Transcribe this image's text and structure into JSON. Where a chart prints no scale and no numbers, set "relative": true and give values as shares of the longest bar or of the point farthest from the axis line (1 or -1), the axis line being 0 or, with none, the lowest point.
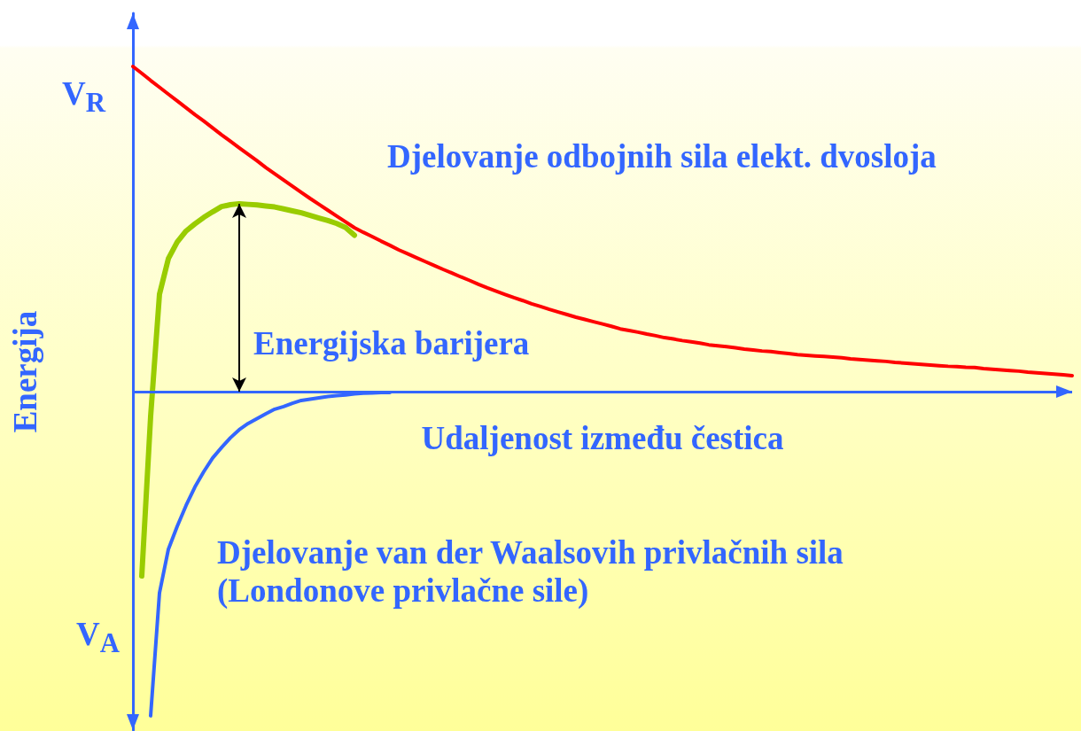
{
  "chart_data": {
    "type": "line",
    "relative": true,
    "xlabel": "Udaljenost između čestica",
    "ylabel": "Energija",
    "line_style": "solid",
    "categories": [
      null,
      null,
      null,
      null,
      null,
      null,
      null,
      null,
      null,
      null,
      null,
      null,
      null,
      null,
      null,
      null,
      null,
      null,
      null,
      null,
      null,
      null,
      null,
      null,
      null,
      null,
      null,
      null,
      null,
      null,
      null,
      null,
      null,
      null,
      null,
      null,
      null,
      null,
      null,
      null,
      null,
      null,
      null,
      null,
      null,
      null,
      null,
      null,
      null,
      null,
      null,
      null,
      null,
      null,
      null,
      null,
      null,
      null,
      null,
      null,
      null,
      null,
      null,
      null,
      null,
      null,
      null,
      null,
      null,
      null,
      null,
      null,
      null,
      null,
      null,
      null,
      null,
      null,
      null,
      null,
      null,
      null,
      null,
      null,
      null,
      null,
      null,
      null,
      null,
      null,
      null,
      null,
      null,
      null,
      null,
      null,
      null,
      null,
      null,
      null,
      null,
      null,
      null,
      null,
      null,
      null,
      null
    ],
    "series": [
      {
        "color": "#ff0000",
        "values": [
          1,
          0.979,
          0.957,
          0.936,
          0.915,
          0.894,
          0.873,
          0.852,
          0.832,
          0.811,
          0.79,
          0.77,
          0.75,
          0.73,
          0.71,
          0.689,
          0.67,
          0.651,
          0.632,
          0.613,
          0.594,
          0.576,
          0.558,
          0.54,
          0.522,
          0.504,
          0.49,
          0.477,
          0.463,
          0.45,
          0.436,
          0.424,
          0.412,
          0.4,
          0.388,
          0.376,
          0.365,
          0.353,
          0.342,
          0.33,
          0.319,
          0.309,
          0.299,
          0.289,
          0.28,
          0.27,
          0.262,
          0.253,
          0.245,
          0.237,
          0.229,
          0.222,
          0.215,
          0.208,
          0.201,
          0.193,
          0.188,
          0.183,
          0.177,
          0.172,
          0.166,
          0.162,
          0.157,
          0.153,
          0.149,
          0.144,
          0.141,
          0.138,
          0.135,
          0.131,
          0.128,
          0.125,
          0.123,
          0.12,
          0.117,
          0.114,
          0.112,
          0.11,
          0.108,
          0.106,
          0.104,
          0.101,
          0.099,
          0.097,
          0.095,
          0.093,
          0.09,
          0.088,
          0.086,
          0.084,
          0.082,
          0.08,
          0.078,
          0.077,
          0.075,
          0.074,
          0.071,
          0.069,
          0.067,
          0.065,
          0.063,
          0.06,
          0.058,
          0.056,
          0.054,
          0.052,
          0.049
        ]
      },
      {
        "color": "#3366ff",
        "values": [
          null,
          null,
          -0.997,
          -0.619,
          -0.485,
          -0.414,
          -0.35,
          -0.293,
          -0.246,
          -0.204,
          -0.172,
          -0.142,
          -0.117,
          -0.098,
          -0.083,
          -0.068,
          -0.054,
          -0.046,
          -0.036,
          -0.027,
          -0.023,
          -0.019,
          -0.015,
          -0.012,
          -0.01,
          -0.007,
          -0.005,
          -0.004,
          -0.003,
          -0.003,
          null,
          null,
          null,
          null,
          null,
          null,
          null,
          null,
          null,
          null,
          null,
          null,
          null,
          null,
          null,
          null,
          null,
          null,
          null,
          null,
          null,
          null,
          null,
          null,
          null,
          null,
          null,
          null,
          null,
          null,
          null,
          null,
          null,
          null,
          null,
          null,
          null,
          null,
          null,
          null,
          null,
          null,
          null,
          null,
          null,
          null,
          null,
          null,
          null,
          null,
          null,
          null,
          null,
          null,
          null,
          null,
          null,
          null,
          null,
          null,
          null,
          null,
          null,
          null,
          null,
          null,
          null,
          null,
          null,
          null,
          null,
          null,
          null,
          null,
          null,
          null,
          null
        ]
      },
      {
        "color": "#99cc00",
        "values": [
          null,
          -0.567,
          -0.076,
          0.3,
          0.409,
          0.46,
          0.494,
          0.516,
          0.536,
          0.553,
          0.569,
          0.575,
          0.578,
          0.576,
          0.574,
          0.571,
          0.568,
          0.562,
          0.556,
          0.55,
          0.542,
          0.534,
          0.526,
          0.517,
          0.505,
          0.481,
          null,
          null,
          null,
          null,
          null,
          null,
          null,
          null,
          null,
          null,
          null,
          null,
          null,
          null,
          null,
          null,
          null,
          null,
          null,
          null,
          null,
          null,
          null,
          null,
          null,
          null,
          null,
          null,
          null,
          null,
          null,
          null,
          null,
          null,
          null,
          null,
          null,
          null,
          null,
          null,
          null,
          null,
          null,
          null,
          null,
          null,
          null,
          null,
          null,
          null,
          null,
          null,
          null,
          null,
          null,
          null,
          null,
          null,
          null,
          null,
          null,
          null,
          null,
          null,
          null,
          null,
          null,
          null,
          null,
          null,
          null,
          null,
          null,
          null,
          null,
          null,
          null,
          null,
          null,
          null,
          null
        ]
      }
    ],
    "ref_lines": [
      {
        "axis": "y",
        "value": 0,
        "color": "#3366ff"
      }
    ],
    "annotations": [
      "V$_{R}$",
      "V$_{A}$",
      "Djelovanje odbojnih sila elekt. dvosloja",
      "Energijska barijera",
      "Djelovanje van der Waalsovih privlačnih sila\n(Londonove privlačne sile)"
    ]
  }
}
